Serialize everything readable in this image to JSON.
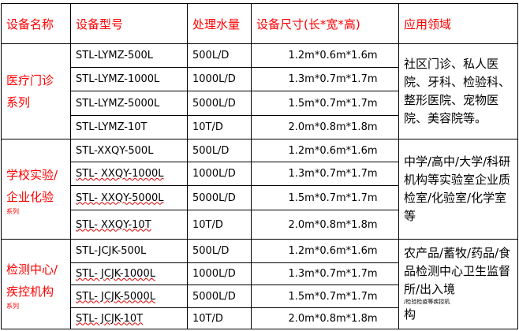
{
  "headers": [
    "设备名称",
    "设备型号",
    "处理水量",
    "设备尺寸(长*宽*高)",
    "应用领域"
  ],
  "groups": [
    {
      "name": "医疗门诊系列",
      "name_lines": [
        "医疗门诊",
        "系列"
      ],
      "sub": "",
      "rows": [
        [
          "STL-LYMZ-500L",
          "500L/D",
          "1.2m*0.6m*1.6m"
        ],
        [
          "STL-LYMZ-1000L",
          "1000L/D",
          "1.3m*0.7m*1.7m"
        ],
        [
          "STL-LYMZ-5000L",
          "5000L/D",
          "1.5m*0.7m*1.7m"
        ],
        [
          "STL-LYMZ-10T",
          "10T/D",
          "2.0m*0.8m*1.8m"
        ]
      ],
      "application": "社区门诊、私人医院、牙科、检验科、整形医院、宠物医院、美容院等。",
      "app_small": ""
    },
    {
      "name": "学校实验/企业化验",
      "name_lines": [
        "学校实验/",
        "企业化验"
      ],
      "sub": "系列",
      "rows": [
        [
          "STL-XXQY-500L",
          "500L/D",
          "1.2m*0.6m*1.6m"
        ],
        [
          "STL- XXQY-1000L",
          "1000L/D",
          "1.3m*0.7m*1.7m"
        ],
        [
          "STL- XXQY-5000L",
          "5000L/D",
          "1.5m*0.7m*1.7m"
        ],
        [
          "STL- XXQY-10T",
          "10T/D",
          "2.0m*0.8m*1.8m"
        ]
      ],
      "application": "中学/高中/大学/科研机构等实验室企业质检室/化验室/化学室等",
      "app_small": ""
    },
    {
      "name": "检测中心/疾控机构",
      "name_lines": [
        "检测中心/",
        "疾控机构"
      ],
      "sub": "系列",
      "rows": [
        [
          "STL-JCJK-500L",
          "500L/D",
          "1.2m*0.6m*1.6m"
        ],
        [
          "STL- JCJK-1000L",
          "1000L/D",
          "1.3m*0.7m*1.7m"
        ],
        [
          "STL- JCJK-5000L",
          "5000L/D",
          "1.5m*0.7m*1.7m"
        ],
        [
          "STL- JCJK-10T",
          "10T/D",
          "2.0m*0.8m*1.8m"
        ]
      ],
      "application": "农产品/蓄牧/药品/食品检测中心卫生监督所/出入境",
      "app_small": "/检验检疫等疾控机",
      "app_tail": "构"
    }
  ]
}
